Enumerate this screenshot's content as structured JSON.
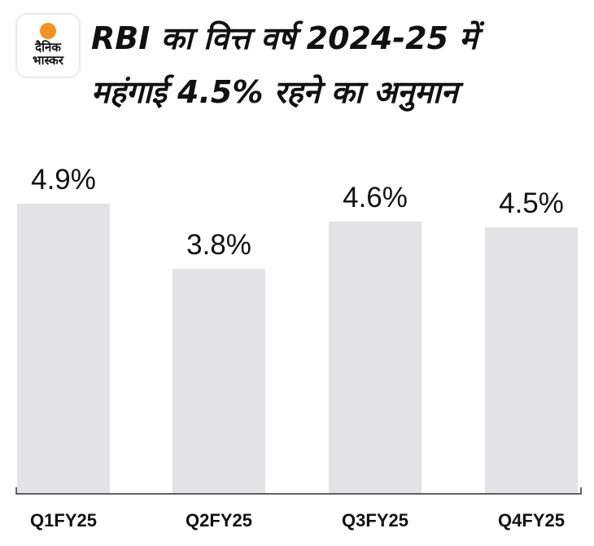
{
  "logo": {
    "line1": "दैनिक",
    "line2": "भास्कर",
    "accent": "#f39222"
  },
  "chart_data": {
    "type": "bar",
    "title_lines": [
      "RBI का वित्त वर्ष 2024-25 में",
      "महंगाई 4.5% रहने का अनुमान"
    ],
    "categories": [
      "Q1FY25",
      "Q2FY25",
      "Q3FY25",
      "Q4FY25"
    ],
    "values": [
      4.9,
      3.8,
      4.6,
      4.5
    ],
    "data_labels": [
      "4.9%",
      "3.8%",
      "4.6%",
      "4.5%"
    ],
    "xlabel": "",
    "ylabel": "",
    "ylim": [
      0,
      4.9
    ],
    "grid": false,
    "legend": "none",
    "bar_color": "#e3e3e5"
  }
}
